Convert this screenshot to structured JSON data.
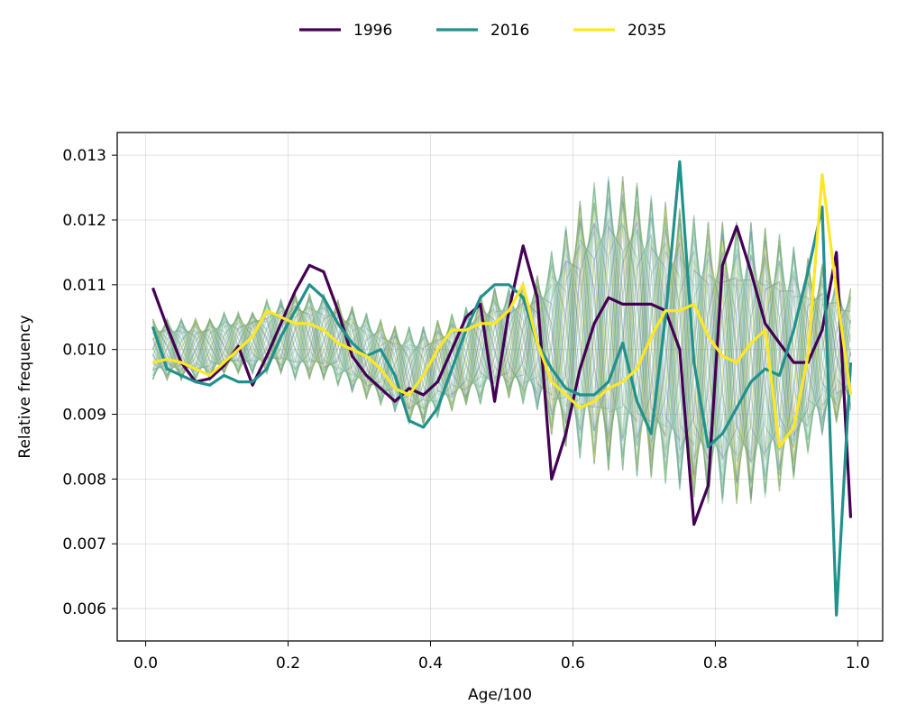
{
  "chart_data": {
    "type": "line",
    "title": "",
    "xlabel": "Age/100",
    "ylabel": "Relative frequency",
    "xlim": [
      -0.04,
      1.035
    ],
    "ylim": [
      0.0055,
      0.01335
    ],
    "x_ticks": [
      0.0,
      0.2,
      0.4,
      0.6,
      0.8,
      1.0
    ],
    "x_tick_labels": [
      "0.0",
      "0.2",
      "0.4",
      "0.6",
      "0.8",
      "1.0"
    ],
    "y_ticks": [
      0.006,
      0.007,
      0.008,
      0.009,
      0.01,
      0.011,
      0.012,
      0.013
    ],
    "y_tick_labels": [
      "0.006",
      "0.007",
      "0.008",
      "0.009",
      "0.010",
      "0.011",
      "0.012",
      "0.013"
    ],
    "grid": true,
    "legend": {
      "placement": "top-center-outside",
      "entries": [
        "1996",
        "2016",
        "2035"
      ]
    },
    "background_series": {
      "description_colormap": "viridis",
      "count": 40,
      "alpha": 0.28,
      "x": [
        0.01,
        0.03,
        0.05,
        0.07,
        0.09,
        0.11,
        0.13,
        0.15,
        0.17,
        0.19,
        0.21,
        0.23,
        0.25,
        0.27,
        0.29,
        0.31,
        0.33,
        0.35,
        0.37,
        0.39,
        0.41,
        0.43,
        0.45,
        0.47,
        0.49,
        0.51,
        0.53,
        0.55,
        0.57,
        0.59,
        0.61,
        0.63,
        0.65,
        0.67,
        0.69,
        0.71,
        0.73,
        0.75,
        0.77,
        0.79,
        0.81,
        0.83,
        0.85,
        0.87,
        0.89,
        0.91,
        0.93,
        0.95,
        0.97,
        0.99
      ],
      "base": [
        0.01,
        0.01,
        0.01,
        0.01,
        0.01,
        0.0101,
        0.0101,
        0.0101,
        0.0102,
        0.0102,
        0.0102,
        0.0102,
        0.0102,
        0.0101,
        0.01,
        0.0099,
        0.0098,
        0.0097,
        0.0096,
        0.0096,
        0.0097,
        0.0098,
        0.0099,
        0.01,
        0.0101,
        0.0101,
        0.0101,
        0.0101,
        0.0101,
        0.0102,
        0.0103,
        0.0104,
        0.0104,
        0.0104,
        0.0103,
        0.0102,
        0.0101,
        0.01,
        0.0099,
        0.0098,
        0.0098,
        0.0098,
        0.0098,
        0.0098,
        0.0098,
        0.0098,
        0.0099,
        0.01,
        0.01,
        0.01
      ],
      "amp": [
        0.0005,
        0.0005,
        0.0005,
        0.0005,
        0.0005,
        0.0005,
        0.0005,
        0.0005,
        0.0006,
        0.0006,
        0.0007,
        0.0007,
        0.0007,
        0.0007,
        0.0007,
        0.0007,
        0.0007,
        0.0007,
        0.0008,
        0.0008,
        0.0008,
        0.0008,
        0.0008,
        0.0009,
        0.0009,
        0.0009,
        0.001,
        0.0011,
        0.0015,
        0.0018,
        0.0021,
        0.0023,
        0.0024,
        0.0024,
        0.0024,
        0.0023,
        0.0023,
        0.0023,
        0.0023,
        0.0023,
        0.0023,
        0.0023,
        0.0023,
        0.0022,
        0.0021,
        0.0019,
        0.0016,
        0.0014,
        0.0012,
        0.001
      ]
    },
    "series": [
      {
        "name": "1996",
        "color": "#440154",
        "x": [
          0.01,
          0.03,
          0.05,
          0.07,
          0.09,
          0.11,
          0.13,
          0.15,
          0.17,
          0.19,
          0.21,
          0.23,
          0.25,
          0.27,
          0.29,
          0.31,
          0.33,
          0.35,
          0.37,
          0.39,
          0.41,
          0.43,
          0.45,
          0.47,
          0.49,
          0.51,
          0.53,
          0.55,
          0.57,
          0.59,
          0.61,
          0.63,
          0.65,
          0.67,
          0.69,
          0.71,
          0.73,
          0.75,
          0.77,
          0.79,
          0.81,
          0.83,
          0.85,
          0.87,
          0.89,
          0.91,
          0.93,
          0.95,
          0.97,
          0.99
        ],
        "values": [
          0.01095,
          0.01035,
          0.0098,
          0.0095,
          0.00955,
          0.00975,
          0.01005,
          0.00945,
          0.0099,
          0.0104,
          0.0109,
          0.0113,
          0.0112,
          0.0106,
          0.0099,
          0.0096,
          0.0094,
          0.0092,
          0.0094,
          0.0093,
          0.0095,
          0.01,
          0.0105,
          0.0107,
          0.0092,
          0.0106,
          0.0116,
          0.0108,
          0.008,
          0.0087,
          0.0097,
          0.0104,
          0.0108,
          0.0107,
          0.0107,
          0.0107,
          0.0106,
          0.01,
          0.0073,
          0.0079,
          0.0113,
          0.0119,
          0.0112,
          0.0104,
          0.0101,
          0.0098,
          0.0098,
          0.0103,
          0.0115,
          0.0074
        ]
      },
      {
        "name": "2016",
        "color": "#21918c",
        "x": [
          0.01,
          0.03,
          0.05,
          0.07,
          0.09,
          0.11,
          0.13,
          0.15,
          0.17,
          0.19,
          0.21,
          0.23,
          0.25,
          0.27,
          0.29,
          0.31,
          0.33,
          0.35,
          0.37,
          0.39,
          0.41,
          0.43,
          0.45,
          0.47,
          0.49,
          0.51,
          0.53,
          0.55,
          0.57,
          0.59,
          0.61,
          0.63,
          0.65,
          0.67,
          0.69,
          0.71,
          0.73,
          0.75,
          0.77,
          0.79,
          0.81,
          0.83,
          0.85,
          0.87,
          0.89,
          0.91,
          0.93,
          0.95,
          0.97,
          0.99
        ],
        "values": [
          0.01035,
          0.0097,
          0.0096,
          0.0095,
          0.00945,
          0.0096,
          0.0095,
          0.0095,
          0.0097,
          0.0102,
          0.0106,
          0.011,
          0.0108,
          0.0104,
          0.0101,
          0.0099,
          0.01,
          0.0096,
          0.0089,
          0.0088,
          0.0091,
          0.0097,
          0.0103,
          0.0108,
          0.011,
          0.011,
          0.0108,
          0.0101,
          0.0097,
          0.0094,
          0.0093,
          0.0093,
          0.0095,
          0.0101,
          0.0092,
          0.0087,
          0.0105,
          0.0129,
          0.0098,
          0.0085,
          0.0087,
          0.0091,
          0.0095,
          0.0097,
          0.0096,
          0.0103,
          0.0112,
          0.0122,
          0.0059,
          0.0098
        ]
      },
      {
        "name": "2035",
        "color": "#fde725",
        "x": [
          0.01,
          0.03,
          0.05,
          0.07,
          0.09,
          0.11,
          0.13,
          0.15,
          0.17,
          0.19,
          0.21,
          0.23,
          0.25,
          0.27,
          0.29,
          0.31,
          0.33,
          0.35,
          0.37,
          0.39,
          0.41,
          0.43,
          0.45,
          0.47,
          0.49,
          0.51,
          0.53,
          0.55,
          0.57,
          0.59,
          0.61,
          0.63,
          0.65,
          0.67,
          0.69,
          0.71,
          0.73,
          0.75,
          0.77,
          0.79,
          0.81,
          0.83,
          0.85,
          0.87,
          0.89,
          0.91,
          0.93,
          0.95,
          0.97,
          0.99
        ],
        "values": [
          0.0098,
          0.00985,
          0.0098,
          0.0097,
          0.0096,
          0.0098,
          0.01,
          0.0102,
          0.0106,
          0.0105,
          0.0104,
          0.0104,
          0.0103,
          0.0101,
          0.01,
          0.0099,
          0.0097,
          0.0094,
          0.0093,
          0.0096,
          0.01,
          0.0103,
          0.0103,
          0.0104,
          0.0104,
          0.0106,
          0.011,
          0.0101,
          0.0095,
          0.0093,
          0.0091,
          0.0092,
          0.0094,
          0.0095,
          0.0097,
          0.0102,
          0.0106,
          0.0106,
          0.0107,
          0.0102,
          0.0099,
          0.0098,
          0.0101,
          0.0103,
          0.0085,
          0.0088,
          0.0099,
          0.0127,
          0.0109,
          0.0093
        ]
      }
    ]
  }
}
